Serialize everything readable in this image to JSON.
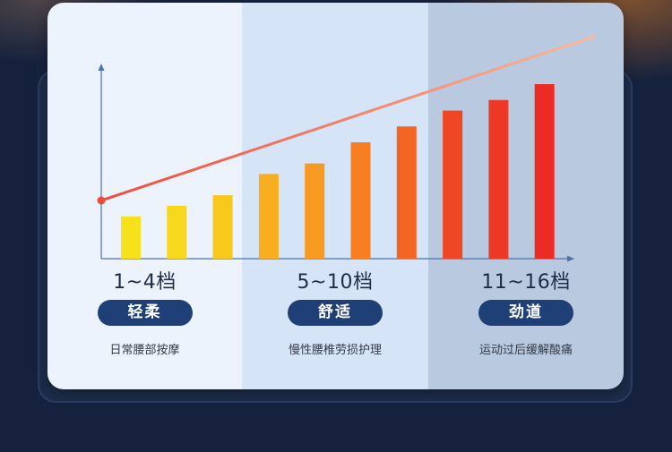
{
  "chart_data": {
    "type": "bar",
    "values": [
      4,
      5,
      6,
      8,
      9,
      11,
      12.5,
      14,
      15,
      16.5
    ],
    "trend_line": {
      "start": 5.5,
      "end": 21
    },
    "colors": [
      "#f7e11b",
      "#f8d81c",
      "#f8c81d",
      "#f7ae1f",
      "#f79a21",
      "#f77f22",
      "#f46523",
      "#ef4725",
      "#ec3926",
      "#ea2c24"
    ],
    "trend_color_start": "#ef4b3b",
    "trend_color_end": "#fbb89a",
    "axis_color": "#4c72b0",
    "ylim": [
      0,
      22
    ],
    "grid": false
  },
  "groups": [
    {
      "level": "1~4档",
      "name": "轻柔",
      "desc": "日常腰部按摩"
    },
    {
      "level": "5~10档",
      "name": "舒适",
      "desc": "慢性腰椎劳损护理"
    },
    {
      "level": "11~16档",
      "name": "劲道",
      "desc": "运动过后缓解酸痛"
    }
  ]
}
